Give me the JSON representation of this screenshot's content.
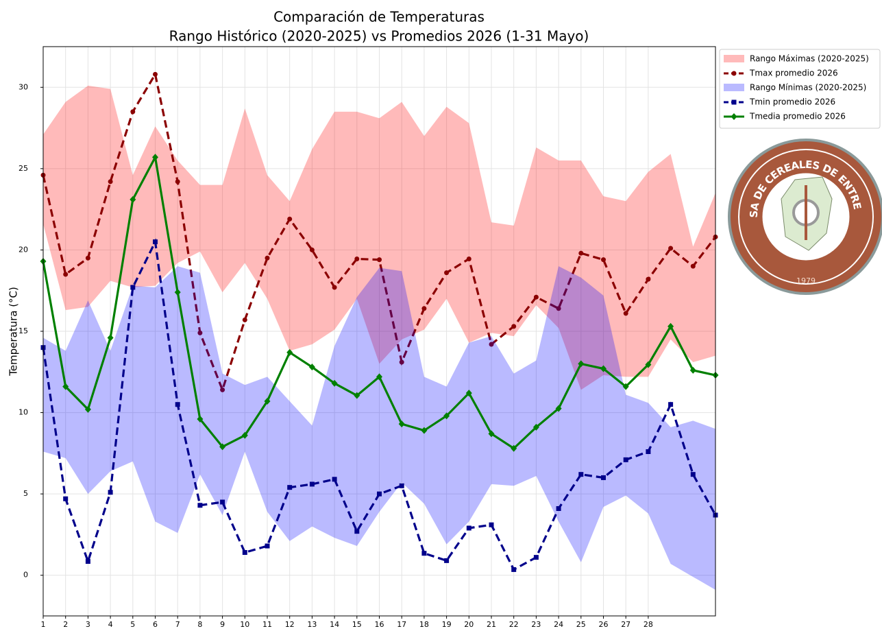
{
  "chart_data": {
    "type": "line",
    "title": "Comparación de Temperaturas",
    "subtitle": "Rango Histórico (2020-2025) vs Promedios 2026 (1-31 Mayo)",
    "y_label": "Temperatura (°C)",
    "x": [
      1,
      2,
      3,
      4,
      5,
      6,
      7,
      8,
      9,
      10,
      11,
      12,
      13,
      14,
      15,
      16,
      17,
      18,
      19,
      20,
      21,
      22,
      23,
      24,
      25,
      26,
      27,
      28,
      29,
      30,
      31
    ],
    "xlim": [
      1,
      31
    ],
    "xticks": [
      1,
      2,
      3,
      4,
      5,
      6,
      7,
      8,
      9,
      10,
      11,
      12,
      13,
      14,
      15,
      16,
      17,
      18,
      19,
      20,
      21,
      22,
      23,
      24,
      25,
      26,
      27,
      28
    ],
    "ylim": [
      -2.5,
      32.5
    ],
    "yticks": [
      0,
      5,
      10,
      15,
      20,
      25,
      30
    ],
    "grid": true,
    "legend": "outside-upper-right",
    "series": [
      {
        "name": "Rango Máximas (2020-2025)",
        "kind": "band",
        "color": "#ff0000",
        "alpha": 0.27,
        "upper": [
          27.1,
          29.1,
          30.1,
          29.9,
          24.6,
          27.6,
          25.5,
          24.0,
          24.0,
          28.7,
          24.6,
          23.0,
          26.2,
          28.5,
          28.5,
          28.1,
          29.1,
          27.0,
          28.8,
          27.8,
          21.7,
          21.5,
          26.3,
          25.5,
          25.5,
          23.3,
          23.0,
          24.8,
          25.9,
          20.2,
          23.5
        ],
        "lower": [
          21.6,
          16.3,
          16.5,
          18.1,
          17.7,
          17.8,
          19.2,
          19.9,
          17.4,
          19.2,
          17.0,
          13.8,
          14.2,
          15.1,
          17.0,
          13.0,
          14.5,
          15.1,
          17.0,
          14.3,
          14.9,
          14.7,
          16.6,
          15.2,
          11.4,
          12.3,
          12.2,
          12.2,
          14.5,
          13.1,
          13.5
        ]
      },
      {
        "name": "Tmax promedio 2026",
        "kind": "line",
        "color": "#8b0000",
        "dashed": true,
        "marker": "circle",
        "values": [
          24.6,
          18.5,
          19.5,
          24.2,
          28.5,
          30.8,
          24.2,
          14.9,
          11.4,
          15.7,
          19.5,
          21.9,
          20.0,
          17.7,
          19.45,
          19.4,
          13.1,
          16.4,
          18.6,
          19.45,
          14.2,
          15.3,
          17.1,
          16.4,
          19.8,
          19.4,
          16.1,
          18.2,
          20.1,
          19.0,
          20.8
        ]
      },
      {
        "name": "Rango Mínimas (2020-2025)",
        "kind": "band",
        "color": "#0000ff",
        "alpha": 0.27,
        "upper": [
          14.6,
          13.8,
          16.9,
          13.8,
          17.8,
          17.7,
          19.0,
          18.6,
          12.4,
          11.7,
          12.2,
          10.7,
          9.2,
          14.1,
          17.1,
          18.9,
          18.7,
          12.2,
          11.6,
          14.3,
          14.7,
          12.4,
          13.2,
          19.0,
          18.3,
          17.2,
          11.1,
          10.6,
          9.1,
          9.5,
          9.0
        ],
        "lower": [
          7.6,
          7.2,
          5.0,
          6.4,
          7.0,
          3.3,
          2.6,
          6.2,
          3.7,
          7.6,
          3.9,
          2.1,
          3.0,
          2.3,
          1.8,
          3.9,
          5.7,
          4.4,
          1.9,
          3.3,
          5.6,
          5.5,
          6.1,
          3.3,
          0.8,
          4.2,
          4.9,
          3.8,
          0.7,
          -0.1,
          -0.9
        ]
      },
      {
        "name": "Tmin promedio 2026",
        "kind": "line",
        "color": "#00008b",
        "dashed": true,
        "marker": "square",
        "values": [
          14.0,
          4.7,
          0.85,
          5.1,
          17.7,
          20.5,
          10.5,
          4.3,
          4.5,
          1.4,
          1.8,
          5.4,
          5.6,
          5.9,
          2.7,
          5.0,
          5.5,
          1.35,
          0.9,
          2.9,
          3.1,
          0.35,
          1.1,
          4.1,
          6.2,
          6.0,
          7.1,
          7.6,
          10.5,
          6.2,
          3.7
        ]
      },
      {
        "name": "Tmedia promedio 2026",
        "kind": "line",
        "color": "#008000",
        "dashed": false,
        "marker": "diamond",
        "values": [
          19.3,
          11.6,
          10.2,
          14.6,
          23.1,
          25.7,
          17.4,
          9.6,
          7.9,
          8.6,
          10.7,
          13.7,
          12.8,
          11.8,
          11.05,
          12.2,
          9.3,
          8.9,
          9.8,
          11.2,
          8.7,
          7.8,
          9.1,
          10.25,
          13.0,
          12.7,
          11.6,
          12.95,
          15.3,
          12.6,
          12.3
        ]
      }
    ]
  },
  "logo": {
    "text": "BOLSA DE CEREALES DE ENTRE RÍOS",
    "year": "1979"
  }
}
